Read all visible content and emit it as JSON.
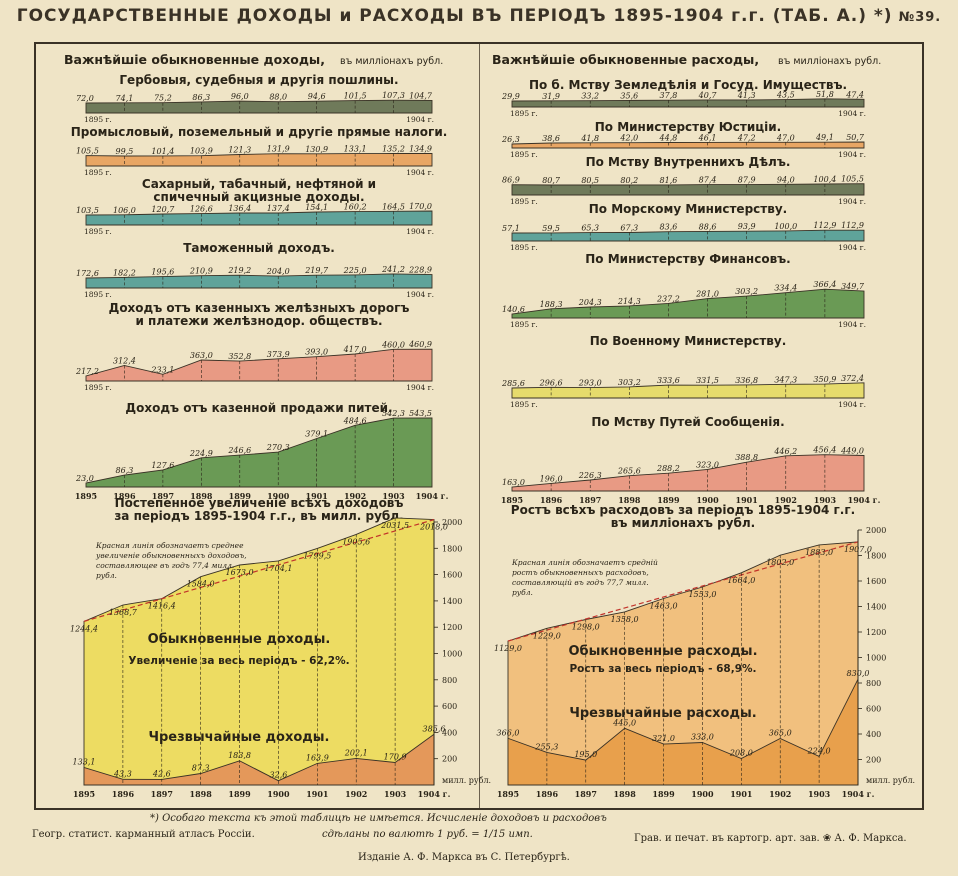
{
  "title": "ГОСУДАРСТВЕННЫЕ ДОХОДЫ и РАСХОДЫ ВЪ ПЕРІОДЪ 1895-1904 г.г. (ТАБ. А.) *)",
  "number": "№39.",
  "left_header": "Важнѣйшіе обыкновенные доходы,",
  "left_header_unit": "въ милліонахъ рубл.",
  "right_header": "Важнѣйшіе обыкновенные расходы,",
  "right_header_unit": "въ милліонахъ рубл.",
  "year_start": "1895 г.",
  "year_end": "1904 г.",
  "years": [
    "1895",
    "1896",
    "1897",
    "1898",
    "1899",
    "1900",
    "1901",
    "1902",
    "1903",
    "1904 г."
  ],
  "footnote_line1": "*) Особаго текста къ этой таблицѣ не имѣется. Исчисленіе доходовъ и расходовъ",
  "footnote_line2": "сдѣланы по валютѣ 1 руб. = 1/15 имп.",
  "footer_left": "Геогр. статист. карманный атласъ Россіи.",
  "footer_right": "Грав. и печат. въ картогр. арт. зав. ❀ А. Ф. Маркса.",
  "publisher": "Изданіе А. Ф. Маркса въ С. Петербургѣ.",
  "chart_data": [
    {
      "type": "area",
      "id": "rev-stamp",
      "title": "Гербовыя, судебныя и другія пошлины.",
      "color": "#6f7a5a",
      "x": [
        "1895",
        "1896",
        "1897",
        "1898",
        "1899",
        "1900",
        "1901",
        "1902",
        "1903",
        "1904"
      ],
      "values": [
        72.0,
        74.1,
        75.2,
        86.3,
        96.0,
        88.0,
        94.6,
        101.5,
        107.3,
        104.7
      ]
    },
    {
      "type": "area",
      "id": "rev-industrial",
      "title": "Промысловый, поземельный и другіе прямые налоги.",
      "color": "#e8a664",
      "x": [
        "1895",
        "1896",
        "1897",
        "1898",
        "1899",
        "1900",
        "1901",
        "1902",
        "1903",
        "1904"
      ],
      "values": [
        105.5,
        99.5,
        101.4,
        103.9,
        121.3,
        131.9,
        130.9,
        133.1,
        135.2,
        134.9
      ]
    },
    {
      "type": "area",
      "id": "rev-excise",
      "title": "Сахарный, табачный, нефтяной и спичечный акцизные доходы.",
      "color": "#5fa39a",
      "x": [
        "1895",
        "1896",
        "1897",
        "1898",
        "1899",
        "1900",
        "1901",
        "1902",
        "1903",
        "1904"
      ],
      "values": [
        103.5,
        106.0,
        120.7,
        126.6,
        136.4,
        137.4,
        154.1,
        160.2,
        164.5,
        170.0
      ]
    },
    {
      "type": "area",
      "id": "rev-customs",
      "title": "Таможенный доходъ.",
      "color": "#5fa39a",
      "x": [
        "1895",
        "1896",
        "1897",
        "1898",
        "1899",
        "1900",
        "1901",
        "1902",
        "1903",
        "1904"
      ],
      "values": [
        172.6,
        182.2,
        195.6,
        210.9,
        219.2,
        204.0,
        219.7,
        225.0,
        241.2,
        228.9
      ]
    },
    {
      "type": "area",
      "id": "rev-rail",
      "title": "Доходъ отъ казенныхъ желѣзныхъ дорогъ и платежи желѣзнодор. обществъ.",
      "color": "#e89a84",
      "x": [
        "1895",
        "1896",
        "1897",
        "1898",
        "1899",
        "1900",
        "1901",
        "1902",
        "1903",
        "1904"
      ],
      "values": [
        217.2,
        312.4,
        233.1,
        363.0,
        352.8,
        373.9,
        393.0,
        417.0,
        460.0,
        460.9
      ]
    },
    {
      "type": "area",
      "id": "rev-drink",
      "title": "Доходъ отъ казенной продажи питей.",
      "color": "#6a9a55",
      "x": [
        "1895",
        "1896",
        "1897",
        "1898",
        "1899",
        "1900",
        "1901",
        "1902",
        "1903",
        "1904"
      ],
      "values": [
        23.0,
        86.3,
        127.6,
        224.9,
        246.6,
        270.3,
        379.1,
        484.6,
        542.3,
        543.5
      ]
    },
    {
      "type": "area",
      "id": "exp-agri",
      "title": "По б. Мству Земледѣлія и Госуд. Имуществъ.",
      "color": "#6f7a5a",
      "x": [
        "1895",
        "1896",
        "1897",
        "1898",
        "1899",
        "1900",
        "1901",
        "1902",
        "1903",
        "1904"
      ],
      "values": [
        29.9,
        31.9,
        33.2,
        35.6,
        37.8,
        40.7,
        41.3,
        43.5,
        51.8,
        47.4
      ]
    },
    {
      "type": "area",
      "id": "exp-justice",
      "title": "По Министерству Юстиціи.",
      "color": "#e8a664",
      "x": [
        "1895",
        "1896",
        "1897",
        "1898",
        "1899",
        "1900",
        "1901",
        "1902",
        "1903",
        "1904"
      ],
      "values": [
        26.3,
        38.6,
        41.8,
        42.0,
        44.8,
        46.1,
        47.2,
        47.0,
        49.1,
        50.7
      ]
    },
    {
      "type": "area",
      "id": "exp-interior",
      "title": "По Мству Внутреннихъ Дѣлъ.",
      "color": "#6f7a5a",
      "x": [
        "1895",
        "1896",
        "1897",
        "1898",
        "1899",
        "1900",
        "1901",
        "1902",
        "1903",
        "1904"
      ],
      "values": [
        86.9,
        80.7,
        80.5,
        80.2,
        81.6,
        87.4,
        87.9,
        94.0,
        100.4,
        105.5
      ]
    },
    {
      "type": "area",
      "id": "exp-navy",
      "title": "По Морскому Министерству.",
      "color": "#5fa39a",
      "x": [
        "1895",
        "1896",
        "1897",
        "1898",
        "1899",
        "1900",
        "1901",
        "1902",
        "1903",
        "1904"
      ],
      "values": [
        57.1,
        59.5,
        65.3,
        67.3,
        83.6,
        88.6,
        93.9,
        100.0,
        112.9,
        112.9
      ]
    },
    {
      "type": "area",
      "id": "exp-finance",
      "title": "По Министерству Финансовъ.",
      "color": "#6a9a55",
      "x": [
        "1895",
        "1896",
        "1897",
        "1898",
        "1899",
        "1900",
        "1901",
        "1902",
        "1903",
        "1904"
      ],
      "values": [
        140.6,
        188.3,
        204.3,
        214.3,
        237.2,
        281.0,
        303.2,
        334.4,
        366.4,
        349.7
      ]
    },
    {
      "type": "area",
      "id": "exp-war",
      "title": "По Военному Министерству.",
      "color": "#e6db6c",
      "x": [
        "1895",
        "1896",
        "1897",
        "1898",
        "1899",
        "1900",
        "1901",
        "1902",
        "1903",
        "1904"
      ],
      "values": [
        285.6,
        296.6,
        293.0,
        303.2,
        333.6,
        331.5,
        336.8,
        347.3,
        350.9,
        372.4
      ]
    },
    {
      "type": "area",
      "id": "exp-transport",
      "title": "По Мству Путей Сообщенія.",
      "color": "#e89a84",
      "x": [
        "1895",
        "1896",
        "1897",
        "1898",
        "1899",
        "1900",
        "1901",
        "1902",
        "1903",
        "1904"
      ],
      "values": [
        163.0,
        196.0,
        226.3,
        265.6,
        288.2,
        323.0,
        388.8,
        446.2,
        456.4,
        449.0
      ]
    },
    {
      "type": "area",
      "id": "rev-total",
      "title": "Постепенное увеличеніе всѣхъ доходовъ за періодъ 1895-1904 г.г., въ милл. рубл.",
      "ylabel": "милл. рубл.",
      "ylim": [
        0,
        2000
      ],
      "x": [
        "1895",
        "1896",
        "1897",
        "1898",
        "1899",
        "1900",
        "1901",
        "1902",
        "1903",
        "1904"
      ],
      "series": [
        {
          "name": "Обыкновенные доходы.",
          "color": "#eddc62",
          "values": [
            1244.4,
            1368.7,
            1416.4,
            1584.0,
            1673.0,
            1704.1,
            1799.5,
            1905.6,
            2031.5,
            2018.0
          ]
        },
        {
          "name": "Чрезвычайные доходы.",
          "color": "#e4985a",
          "values": [
            133.1,
            43.3,
            42.6,
            87.3,
            183.8,
            32.6,
            163.9,
            202.1,
            170.9,
            385.6
          ]
        }
      ],
      "annotations": [
        "Увеличеніе за весь періодъ - 62,2%.",
        "Красная линія обозначаетъ среднее увеличеніе обыкновенныхъ доходовъ, составляющее въ годъ 77,4 милл. рубл."
      ]
    },
    {
      "type": "area",
      "id": "exp-total",
      "title": "Ростъ всѣхъ расходовъ за періодъ 1895-1904 г.г. въ милліонахъ рубл.",
      "ylabel": "милл. рубл.",
      "ylim": [
        0,
        2000
      ],
      "x": [
        "1895",
        "1896",
        "1897",
        "1898",
        "1899",
        "1900",
        "1901",
        "1902",
        "1903",
        "1904"
      ],
      "series": [
        {
          "name": "Обыкновенные расходы.",
          "color": "#f1c07e",
          "values": [
            1129.0,
            1229.0,
            1298.0,
            1358.0,
            1463.0,
            1553.0,
            1664.0,
            1802.0,
            1883.0,
            1907.0
          ]
        },
        {
          "name": "Чрезвычайные расходы.",
          "color": "#e8a04c",
          "values": [
            366.0,
            255.3,
            195.0,
            445.0,
            321.0,
            333.0,
            208.0,
            365.0,
            224.0,
            830.0
          ]
        }
      ],
      "annotations": [
        "Ростъ за весь періодъ - 68,9%.",
        "Красная линія обозначаетъ средній ростъ обыкновенныхъ расходовъ, составляющій въ годъ 77,7 милл. рубл."
      ]
    }
  ]
}
